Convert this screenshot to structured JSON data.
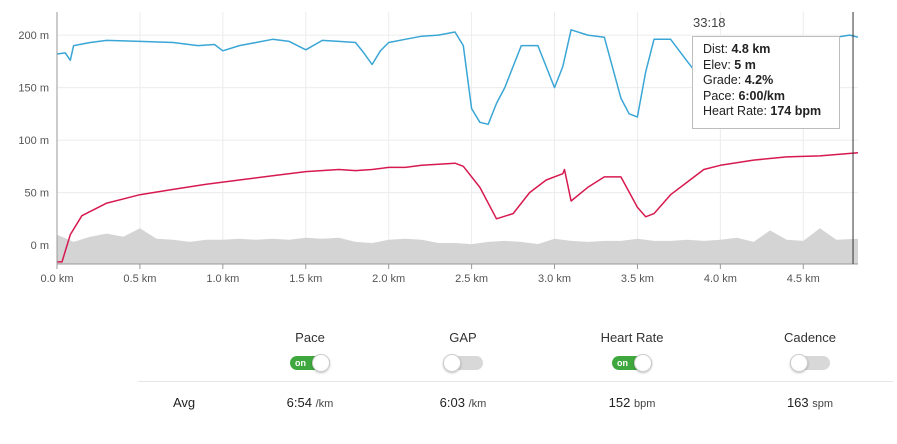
{
  "chart_data": {
    "type": "line",
    "xlabel": "",
    "ylabel": "",
    "xlim": [
      0,
      4.83
    ],
    "ylim": [
      -18,
      222
    ],
    "x_ticks": [
      "0.0 km",
      "0.5 km",
      "1.0 km",
      "1.5 km",
      "2.0 km",
      "2.5 km",
      "3.0 km",
      "3.5 km",
      "4.0 km",
      "4.5 km"
    ],
    "y_ticks": [
      "0 m",
      "50 m",
      "100 m",
      "150 m",
      "200 m"
    ],
    "grid": true,
    "series": [
      {
        "color": "#3aa6d6",
        "x": [
          0,
          0.05,
          0.08,
          0.1,
          0.2,
          0.3,
          0.5,
          0.7,
          0.85,
          0.95,
          1.0,
          1.1,
          1.2,
          1.3,
          1.4,
          1.5,
          1.6,
          1.7,
          1.8,
          1.85,
          1.9,
          1.95,
          2.0,
          2.1,
          2.2,
          2.3,
          2.4,
          2.45,
          2.5,
          2.55,
          2.6,
          2.65,
          2.7,
          2.8,
          2.9,
          2.95,
          3.0,
          3.05,
          3.1,
          3.2,
          3.3,
          3.4,
          3.45,
          3.5,
          3.55,
          3.6,
          3.7,
          3.8,
          3.85,
          3.9,
          4.0,
          4.1,
          4.2,
          4.3,
          4.4,
          4.5,
          4.6,
          4.7,
          4.78,
          4.83
        ],
        "y": [
          182,
          183,
          176,
          190,
          193,
          195,
          194,
          193,
          190,
          191,
          185,
          190,
          193,
          196,
          194,
          186,
          195,
          194,
          193,
          183,
          172,
          185,
          193,
          196,
          199,
          200,
          203,
          190,
          130,
          117,
          115,
          135,
          150,
          190,
          190,
          170,
          150,
          170,
          205,
          200,
          198,
          140,
          125,
          122,
          165,
          196,
          196,
          175,
          165,
          190,
          192,
          193,
          195,
          196,
          196,
          195,
          196,
          198,
          200,
          198
        ]
      },
      {
        "color": "#d61a4f",
        "x": [
          0,
          0.03,
          0.08,
          0.15,
          0.3,
          0.5,
          0.7,
          0.9,
          1.1,
          1.3,
          1.5,
          1.7,
          1.8,
          1.9,
          2.0,
          2.1,
          2.2,
          2.3,
          2.4,
          2.45,
          2.55,
          2.65,
          2.75,
          2.85,
          2.95,
          3.05,
          3.06,
          3.1,
          3.2,
          3.3,
          3.4,
          3.5,
          3.55,
          3.6,
          3.7,
          3.8,
          3.9,
          4.0,
          4.2,
          4.4,
          4.6,
          4.83
        ],
        "y": [
          -16,
          -16,
          10,
          28,
          40,
          48,
          53,
          58,
          62,
          66,
          70,
          72,
          71,
          72,
          74,
          74,
          76,
          77,
          78,
          75,
          55,
          25,
          30,
          50,
          62,
          68,
          72,
          42,
          55,
          65,
          65,
          36,
          27,
          30,
          48,
          60,
          72,
          76,
          81,
          84,
          85,
          88
        ]
      }
    ],
    "area_series": {
      "color": "#d4d4d4",
      "x": [
        0,
        0.1,
        0.2,
        0.3,
        0.4,
        0.5,
        0.6,
        0.7,
        0.8,
        0.9,
        1.0,
        1.1,
        1.2,
        1.3,
        1.4,
        1.5,
        1.6,
        1.7,
        1.8,
        1.9,
        2.0,
        2.1,
        2.2,
        2.3,
        2.4,
        2.5,
        2.6,
        2.7,
        2.8,
        2.9,
        3.0,
        3.1,
        3.2,
        3.3,
        3.4,
        3.5,
        3.6,
        3.7,
        3.8,
        3.9,
        4.0,
        4.1,
        4.2,
        4.3,
        4.4,
        4.5,
        4.6,
        4.7,
        4.83
      ],
      "y": [
        10,
        3,
        8,
        11,
        8,
        16,
        6,
        5,
        3,
        5,
        5,
        6,
        5,
        6,
        5,
        7,
        6,
        7,
        3,
        2,
        5,
        6,
        5,
        2,
        2,
        1,
        3,
        4,
        3,
        1,
        6,
        4,
        3,
        4,
        4,
        6,
        4,
        4,
        5,
        4,
        5,
        7,
        3,
        14,
        5,
        4,
        16,
        5,
        6
      ]
    },
    "cursor": {
      "x": 4.8,
      "time": "33:18",
      "tooltip": [
        {
          "label": "Dist: ",
          "value": "4.8 km"
        },
        {
          "label": "Elev: ",
          "value": "5 m"
        },
        {
          "label": "Grade: ",
          "value": "4.2%"
        },
        {
          "label": "Pace: ",
          "value": "6:00/km"
        },
        {
          "label": "Heart Rate: ",
          "value": "174 bpm"
        }
      ]
    }
  },
  "controls": {
    "avg_label": "Avg",
    "items": [
      {
        "name": "Pace",
        "state": "on",
        "on_text": "on",
        "avg": "6:54",
        "unit": "/km"
      },
      {
        "name": "GAP",
        "state": "off",
        "avg": "6:03",
        "unit": "/km"
      },
      {
        "name": "Heart Rate",
        "state": "on",
        "on_text": "on",
        "avg": "152",
        "unit": "bpm"
      },
      {
        "name": "Cadence",
        "state": "off",
        "avg": "163",
        "unit": "spm"
      }
    ]
  }
}
